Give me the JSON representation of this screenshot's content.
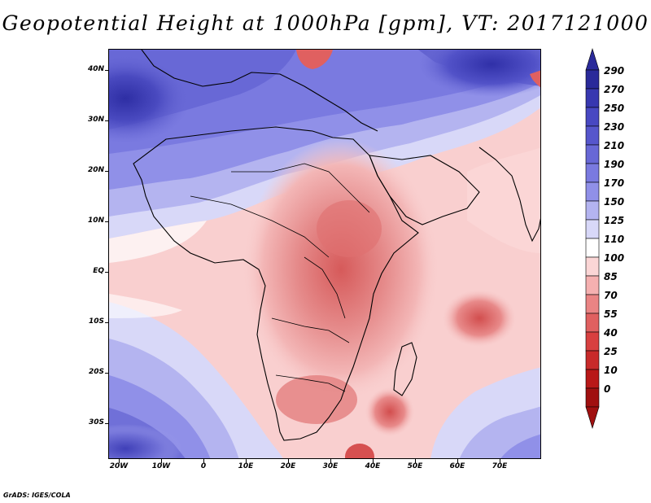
{
  "title": "Geopotential Height at 1000hPa [gpm], VT: 2017121000",
  "credit": "GrADS: IGES/COLA",
  "map": {
    "latitude_labels": [
      "40N",
      "30N",
      "20N",
      "10N",
      "EQ",
      "10S",
      "20S",
      "30S"
    ],
    "longitude_labels": [
      "20W",
      "10W",
      "0",
      "10E",
      "20E",
      "30E",
      "40E",
      "50E",
      "60E",
      "70E"
    ],
    "lon_range": [
      -22,
      80
    ],
    "lat_range": [
      -37,
      45
    ]
  },
  "colorbar": {
    "levels": [
      "290",
      "270",
      "250",
      "230",
      "210",
      "190",
      "170",
      "150",
      "125",
      "110",
      "100",
      "85",
      "70",
      "55",
      "40",
      "25",
      "10",
      "0"
    ],
    "colors": [
      "#2a2a9a",
      "#3838b0",
      "#4848c2",
      "#5656cc",
      "#6868d6",
      "#7a7ae0",
      "#9090e8",
      "#b4b4f0",
      "#d8d8f8",
      "#ffffff",
      "#fbd6d6",
      "#f5b0b0",
      "#ea8484",
      "#e06060",
      "#d84040",
      "#c82a2a",
      "#b81818",
      "#a01010"
    ]
  }
}
